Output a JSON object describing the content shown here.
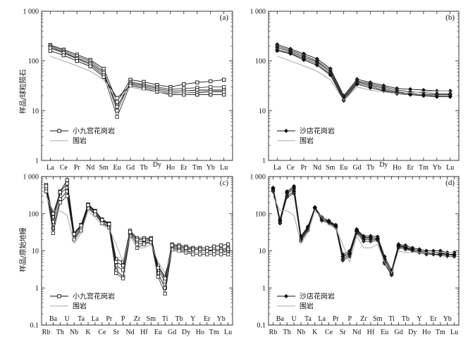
{
  "chart_data": [
    {
      "type": "line",
      "panel_label": "(a)",
      "ylabel": "样品/球粒陨石",
      "yscale": "log",
      "ylim": [
        1,
        1000
      ],
      "ytick_labels": [
        "1",
        "10",
        "100",
        "1 000"
      ],
      "xtick_labels": [
        "La",
        "Ce",
        "Pr",
        "Nd",
        "Sm",
        "Eu",
        "Gd",
        "Tb",
        "Dy",
        "Ho",
        "Er",
        "Tm",
        "Yb",
        "Lu"
      ],
      "legend": [
        {
          "label": "小九宫花岗岩",
          "marker": "open-square"
        },
        {
          "label": "围岩",
          "marker": "none"
        }
      ],
      "series": [
        {
          "group": "小九宫花岗岩",
          "values": [
            210,
            170,
            135,
            105,
            70,
            15,
            42,
            38,
            33,
            30,
            34,
            37,
            39,
            42
          ]
        },
        {
          "group": "小九宫花岗岩",
          "values": [
            200,
            160,
            125,
            98,
            62,
            10,
            38,
            34,
            30,
            27,
            28,
            29,
            30,
            30
          ]
        },
        {
          "group": "小九宫花岗岩",
          "values": [
            190,
            150,
            115,
            90,
            58,
            12,
            36,
            32,
            28,
            25,
            25,
            26,
            26,
            26
          ]
        },
        {
          "group": "小九宫花岗岩",
          "values": [
            180,
            145,
            110,
            85,
            52,
            7.5,
            34,
            30,
            26,
            23,
            23,
            23,
            24,
            24
          ]
        },
        {
          "group": "小九宫花岗岩",
          "values": [
            160,
            130,
            100,
            78,
            48,
            18,
            32,
            28,
            24,
            21,
            21,
            21,
            21,
            21
          ]
        },
        {
          "group": "围岩",
          "values": [
            125,
            100,
            80,
            62,
            42,
            16,
            30,
            26,
            24,
            22,
            23,
            24,
            25,
            25
          ]
        }
      ]
    },
    {
      "type": "line",
      "panel_label": "(b)",
      "ylabel": "",
      "yscale": "log",
      "ylim": [
        1,
        1000
      ],
      "ytick_labels": [
        "1",
        "10",
        "100",
        "1 000"
      ],
      "xtick_labels": [
        "La",
        "Ce",
        "Pr",
        "Nd",
        "Sm",
        "Eu",
        "Gd",
        "Tb",
        "Dy",
        "Ho",
        "Er",
        "Tm",
        "Yb",
        "Lu"
      ],
      "legend": [
        {
          "label": "沙店花岗岩",
          "marker": "filled-diamond"
        },
        {
          "label": "围岩",
          "marker": "none"
        }
      ],
      "series": [
        {
          "group": "沙店花岗岩",
          "values": [
            215,
            175,
            140,
            110,
            70,
            20,
            43,
            37,
            32,
            28,
            27,
            26,
            25,
            25
          ]
        },
        {
          "group": "沙店花岗岩",
          "values": [
            200,
            165,
            130,
            100,
            65,
            19,
            40,
            35,
            30,
            26,
            24,
            23,
            22,
            22
          ]
        },
        {
          "group": "沙店花岗岩",
          "values": [
            185,
            155,
            120,
            95,
            60,
            18,
            38,
            33,
            28,
            24,
            22,
            21,
            21,
            21
          ]
        },
        {
          "group": "沙店花岗岩",
          "values": [
            170,
            145,
            112,
            88,
            55,
            17,
            36,
            31,
            26,
            23,
            21,
            20,
            20,
            20
          ]
        },
        {
          "group": "沙店花岗岩",
          "values": [
            160,
            140,
            105,
            82,
            52,
            16,
            34,
            29,
            25,
            22,
            21,
            20,
            19,
            19
          ]
        },
        {
          "group": "围岩",
          "values": [
            125,
            100,
            80,
            62,
            42,
            16,
            30,
            26,
            24,
            22,
            23,
            24,
            25,
            25
          ]
        }
      ]
    },
    {
      "type": "line",
      "panel_label": "(c)",
      "ylabel": "样品/原始地幔",
      "yscale": "log",
      "ylim": [
        0.1,
        1000
      ],
      "ytick_labels": [
        "0.1",
        "1",
        "10",
        "100",
        "1 000"
      ],
      "xtick_labels": [
        "Rb",
        "Ba",
        "Th",
        "U",
        "Nb",
        "Ta",
        "K",
        "La",
        "Ce",
        "Pr",
        "Sr",
        "P",
        "Nd",
        "Zr",
        "Hf",
        "Sm",
        "Eu",
        "Ti",
        "Gd",
        "Tb",
        "Dy",
        "Y",
        "Ho",
        "Er",
        "Tm",
        "Yb",
        "Lu"
      ],
      "legend": [
        {
          "label": "小九宫花岗岩",
          "marker": "open-square"
        },
        {
          "label": "围岩",
          "marker": "none"
        }
      ],
      "series": [
        {
          "group": "小九宫花岗岩",
          "values": [
            600,
            80,
            400,
            800,
            30,
            50,
            180,
            120,
            70,
            55,
            6,
            5,
            35,
            22,
            22,
            22,
            4,
            2,
            15,
            14,
            13,
            12,
            12,
            12,
            13,
            14,
            15
          ]
        },
        {
          "group": "小九宫花岗岩",
          "values": [
            500,
            60,
            350,
            500,
            25,
            45,
            160,
            110,
            65,
            50,
            4,
            3,
            30,
            18,
            18,
            20,
            3,
            1.5,
            13,
            12,
            11,
            11,
            11,
            10,
            11,
            11,
            12
          ]
        },
        {
          "group": "小九宫花岗岩",
          "values": [
            550,
            40,
            250,
            400,
            22,
            40,
            150,
            100,
            60,
            45,
            3,
            2,
            28,
            15,
            16,
            18,
            2.5,
            1,
            12,
            11,
            10,
            9,
            9,
            9,
            9,
            9,
            10
          ]
        },
        {
          "group": "小九宫花岗岩",
          "values": [
            450,
            30,
            200,
            300,
            20,
            35,
            140,
            95,
            55,
            42,
            2.5,
            1.8,
            25,
            12,
            15,
            17,
            2,
            0.7,
            11,
            10,
            9,
            8,
            8,
            8,
            8,
            8,
            8
          ]
        },
        {
          "group": "小九宫花岗岩",
          "values": [
            400,
            100,
            380,
            650,
            28,
            48,
            170,
            115,
            68,
            52,
            5,
            4,
            32,
            20,
            20,
            21,
            3.5,
            1.8,
            14,
            13,
            12,
            11,
            11,
            10,
            10,
            10,
            11
          ]
        },
        {
          "group": "围岩",
          "values": [
            300,
            120,
            120,
            90,
            16,
            30,
            120,
            80,
            50,
            40,
            15,
            5,
            25,
            12,
            12,
            15,
            5,
            2.5,
            10,
            9,
            9,
            9,
            9,
            9,
            9,
            9,
            9
          ]
        }
      ]
    },
    {
      "type": "line",
      "panel_label": "(d)",
      "ylabel": "",
      "yscale": "log",
      "ylim": [
        0.1,
        1000
      ],
      "ytick_labels": [
        "0.1",
        "1",
        "10",
        "100",
        "1 000"
      ],
      "xtick_labels": [
        "Rb",
        "Ba",
        "Th",
        "U",
        "Nb",
        "Ta",
        "K",
        "La",
        "Ce",
        "Pr",
        "Sr",
        "P",
        "Nd",
        "Zr",
        "Hf",
        "Sm",
        "Eu",
        "Ti",
        "Gd",
        "Tb",
        "Dy",
        "Y",
        "Ho",
        "Er",
        "Tm",
        "Yb",
        "Lu"
      ],
      "legend": [
        {
          "label": "沙店花岗岩",
          "marker": "filled-diamond"
        },
        {
          "label": "围岩",
          "marker": "none"
        }
      ],
      "series": [
        {
          "group": "沙店花岗岩",
          "values": [
            500,
            70,
            400,
            550,
            25,
            45,
            150,
            80,
            65,
            50,
            8,
            10,
            38,
            25,
            25,
            24,
            7,
            3,
            15,
            14,
            12,
            11,
            10,
            10,
            10,
            9,
            9
          ]
        },
        {
          "group": "沙店花岗岩",
          "values": [
            450,
            60,
            350,
            450,
            22,
            40,
            145,
            75,
            60,
            48,
            7,
            9,
            35,
            22,
            22,
            22,
            6,
            2.5,
            14,
            13,
            11,
            10,
            9,
            9,
            9,
            8,
            8
          ]
        },
        {
          "group": "沙店花岗岩",
          "values": [
            420,
            55,
            300,
            400,
            20,
            38,
            140,
            70,
            58,
            45,
            6,
            8,
            33,
            20,
            20,
            20,
            5,
            2.3,
            13,
            12,
            10,
            9,
            9,
            8,
            8,
            8,
            7.5
          ]
        },
        {
          "group": "沙店花岗岩",
          "values": [
            400,
            60,
            280,
            350,
            18,
            35,
            140,
            65,
            55,
            42,
            5.5,
            7,
            30,
            18,
            18,
            19,
            4.5,
            2.2,
            12,
            11,
            10,
            9,
            8,
            8,
            7.5,
            7.2,
            7
          ]
        },
        {
          "group": "沙店花岗岩",
          "values": [
            480,
            65,
            370,
            500,
            24,
            42,
            148,
            72,
            62,
            47,
            7,
            8.5,
            36,
            23,
            23,
            21,
            6,
            2.6,
            14,
            12,
            11,
            10,
            9,
            9,
            8.5,
            8,
            8
          ]
        },
        {
          "group": "围岩",
          "values": [
            300,
            120,
            120,
            90,
            16,
            30,
            120,
            80,
            50,
            40,
            15,
            5,
            25,
            12,
            12,
            15,
            5,
            2.5,
            10,
            9,
            9,
            9,
            9,
            9,
            9,
            9,
            9
          ]
        }
      ]
    }
  ]
}
